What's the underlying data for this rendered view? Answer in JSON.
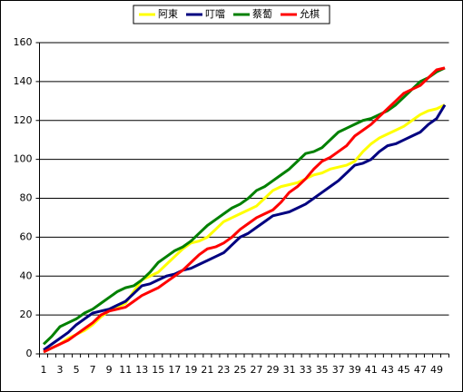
{
  "chart_data": {
    "type": "line",
    "categories": [
      "1",
      null,
      "3",
      null,
      "5",
      null,
      "7",
      null,
      "9",
      null,
      "11",
      null,
      "13",
      null,
      "15",
      null,
      "17",
      null,
      "19",
      null,
      "21",
      null,
      "23",
      null,
      "25",
      null,
      "27",
      null,
      "29",
      null,
      "31",
      null,
      "33",
      null,
      "35",
      null,
      "37",
      null,
      "39",
      null,
      "41",
      null,
      "43",
      null,
      "45",
      null,
      "47",
      null,
      "49",
      null
    ],
    "series": [
      {
        "name": "阿東",
        "color": "#ffff00",
        "values": [
          1,
          3,
          5,
          8,
          10,
          12,
          15,
          19,
          22,
          24,
          26,
          32,
          38,
          40,
          42,
          46,
          50,
          54,
          57,
          58,
          60,
          64,
          68,
          70,
          72,
          74,
          76,
          80,
          84,
          86,
          87,
          88,
          90,
          92,
          93,
          95,
          96,
          97,
          99,
          104,
          108,
          111,
          113,
          115,
          117,
          120,
          123,
          125,
          126,
          128
        ]
      },
      {
        "name": "叮噹",
        "color": "#000080",
        "values": [
          2,
          5,
          8,
          11,
          15,
          18,
          21,
          22,
          23,
          25,
          27,
          31,
          35,
          36,
          38,
          40,
          41,
          43,
          44,
          46,
          48,
          50,
          52,
          56,
          60,
          62,
          65,
          68,
          71,
          72,
          73,
          75,
          77,
          80,
          83,
          86,
          89,
          93,
          97,
          98,
          100,
          104,
          107,
          108,
          110,
          112,
          114,
          118,
          121,
          128
        ]
      },
      {
        "name": "蔡蔔",
        "color": "#008000",
        "values": [
          5,
          9,
          14,
          16,
          18,
          21,
          23,
          26,
          29,
          32,
          34,
          35,
          38,
          42,
          47,
          50,
          53,
          55,
          58,
          62,
          66,
          69,
          72,
          75,
          77,
          80,
          84,
          86,
          89,
          92,
          95,
          99,
          103,
          104,
          106,
          110,
          114,
          116,
          118,
          120,
          121,
          123,
          125,
          128,
          132,
          136,
          140,
          142,
          145,
          147
        ]
      },
      {
        "name": "允棋",
        "color": "#ff0000",
        "values": [
          1,
          3,
          5,
          7,
          10,
          13,
          16,
          20,
          22,
          23,
          24,
          27,
          30,
          32,
          34,
          37,
          40,
          43,
          47,
          51,
          54,
          55,
          57,
          60,
          64,
          67,
          70,
          72,
          74,
          78,
          83,
          86,
          90,
          95,
          99,
          101,
          104,
          107,
          112,
          115,
          118,
          122,
          126,
          130,
          134,
          136,
          138,
          142,
          146,
          147
        ]
      }
    ],
    "ylim": [
      0,
      160
    ],
    "yticks": [
      0,
      20,
      40,
      60,
      80,
      100,
      120,
      140,
      160
    ],
    "grid": true,
    "legend": "top"
  }
}
